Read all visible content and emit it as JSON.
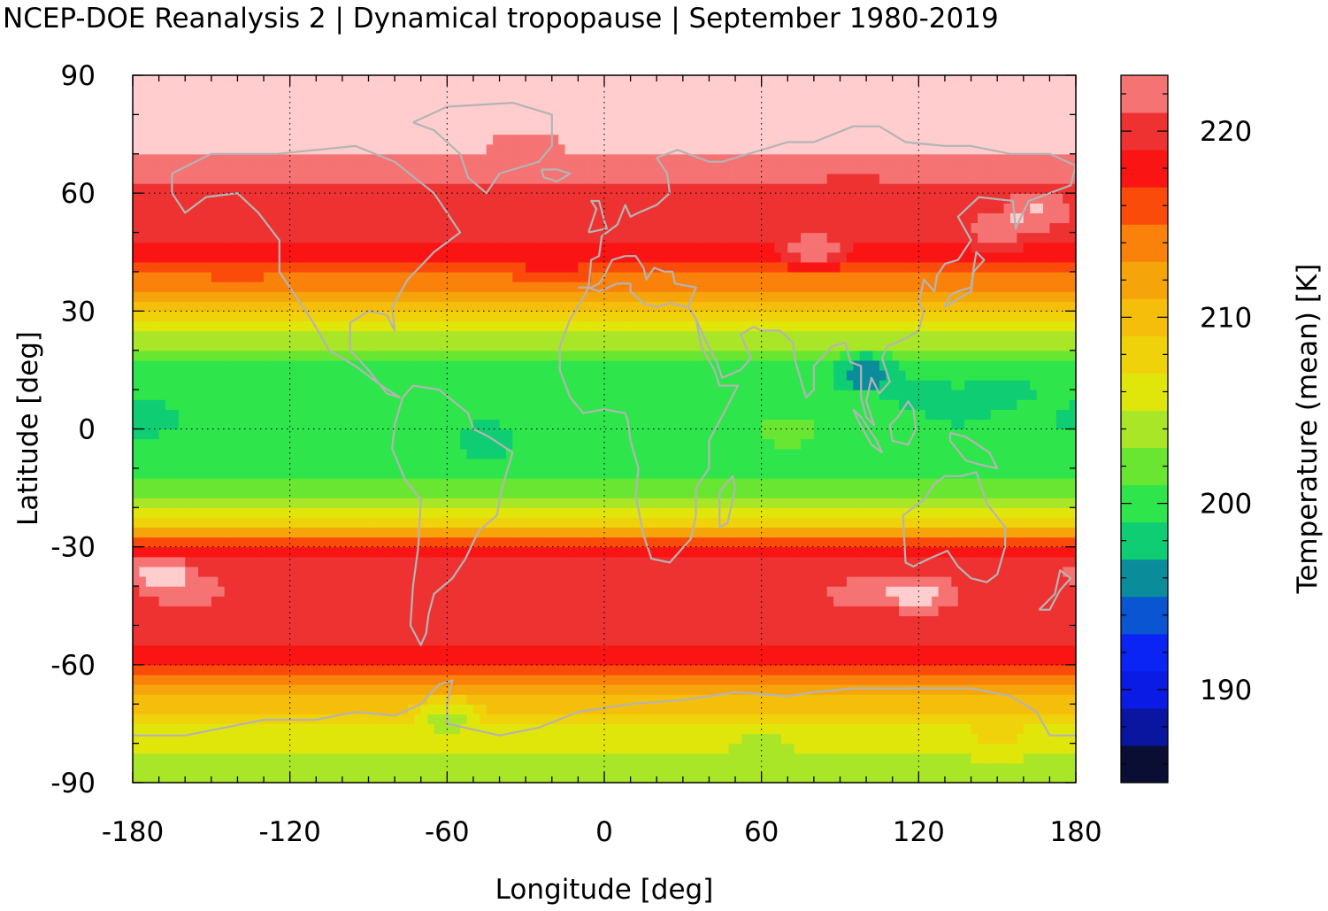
{
  "chart_data": {
    "type": "heatmap",
    "title": "NCEP-DOE Reanalysis 2 | Dynamical tropopause | September 1980-2019",
    "xlabel": "Longitude [deg]",
    "ylabel": "Latitude [deg]",
    "colorbar_label": "Temperature (mean) [K]",
    "xlim": [
      -180,
      180
    ],
    "ylim": [
      -90,
      90
    ],
    "x_ticks": [
      -180,
      -120,
      -60,
      0,
      60,
      120,
      180
    ],
    "y_ticks": [
      -90,
      -60,
      -30,
      0,
      30,
      60,
      90
    ],
    "colorbar_range": [
      185,
      223
    ],
    "colorbar_ticks": [
      190,
      200,
      210,
      220
    ],
    "grid": true,
    "overlay": "coastlines",
    "colorbar_levels": [
      {
        "from": 185,
        "to": 187,
        "color": "#0b0e33"
      },
      {
        "from": 187,
        "to": 189,
        "color": "#0a15a0"
      },
      {
        "from": 189,
        "to": 191,
        "color": "#0a1be6"
      },
      {
        "from": 191,
        "to": 193,
        "color": "#0a24f5"
      },
      {
        "from": 193,
        "to": 195,
        "color": "#0a55d2"
      },
      {
        "from": 195,
        "to": 197,
        "color": "#0a8c9b"
      },
      {
        "from": 197,
        "to": 199,
        "color": "#0fcd73"
      },
      {
        "from": 199,
        "to": 201,
        "color": "#2ee64b"
      },
      {
        "from": 201,
        "to": 203,
        "color": "#69e632"
      },
      {
        "from": 203,
        "to": 205,
        "color": "#aae628"
      },
      {
        "from": 205,
        "to": 207,
        "color": "#e1e60a"
      },
      {
        "from": 207,
        "to": 209,
        "color": "#f0d20a"
      },
      {
        "from": 209,
        "to": 211,
        "color": "#f5be0a"
      },
      {
        "from": 211,
        "to": 213,
        "color": "#f5a50a"
      },
      {
        "from": 213,
        "to": 215,
        "color": "#fa820a"
      },
      {
        "from": 215,
        "to": 217,
        "color": "#fa4b0a"
      },
      {
        "from": 217,
        "to": 219,
        "color": "#fa1414"
      },
      {
        "from": 219,
        "to": 221,
        "color": "#ee3232"
      },
      {
        "from": 221,
        "to": 223,
        "color": "#f57373"
      },
      {
        "from": 223,
        "to": 225,
        "color": "#ffcdcd"
      }
    ],
    "zonal_mean_temperature": [
      {
        "lat": -90,
        "value": 203
      },
      {
        "lat": -82,
        "value": 205
      },
      {
        "lat": -75,
        "value": 207
      },
      {
        "lat": -68,
        "value": 211
      },
      {
        "lat": -62,
        "value": 216
      },
      {
        "lat": -55,
        "value": 219
      },
      {
        "lat": -48,
        "value": 220
      },
      {
        "lat": -42,
        "value": 221
      },
      {
        "lat": -35,
        "value": 220
      },
      {
        "lat": -28,
        "value": 215
      },
      {
        "lat": -24,
        "value": 208
      },
      {
        "lat": -18,
        "value": 203
      },
      {
        "lat": -10,
        "value": 200
      },
      {
        "lat": 0,
        "value": 200
      },
      {
        "lat": 10,
        "value": 199
      },
      {
        "lat": 18,
        "value": 201
      },
      {
        "lat": 24,
        "value": 205
      },
      {
        "lat": 30,
        "value": 209
      },
      {
        "lat": 36,
        "value": 213
      },
      {
        "lat": 42,
        "value": 217
      },
      {
        "lat": 48,
        "value": 219
      },
      {
        "lat": 55,
        "value": 220
      },
      {
        "lat": 62,
        "value": 221
      },
      {
        "lat": 70,
        "value": 223
      },
      {
        "lat": 80,
        "value": 224
      },
      {
        "lat": 90,
        "value": 224
      }
    ],
    "anomalies": [
      {
        "lon": -45,
        "lat": -3,
        "value": 198
      },
      {
        "lon": 100,
        "lat": 15,
        "value": 196
      },
      {
        "lon": 120,
        "lat": 10,
        "value": 198
      },
      {
        "lon": 135,
        "lat": 5,
        "value": 198
      },
      {
        "lon": 150,
        "lat": 10,
        "value": 198
      },
      {
        "lon": -175,
        "lat": 2,
        "value": 198
      },
      {
        "lon": 70,
        "lat": 0,
        "value": 202
      },
      {
        "lon": -140,
        "lat": 40,
        "value": 216
      },
      {
        "lon": -20,
        "lat": 38,
        "value": 216
      },
      {
        "lon": -30,
        "lat": 72,
        "value": 222
      },
      {
        "lon": 120,
        "lat": -42,
        "value": 224
      },
      {
        "lon": 100,
        "lat": -42,
        "value": 222
      },
      {
        "lon": -160,
        "lat": -40,
        "value": 222
      },
      {
        "lon": -170,
        "lat": -36,
        "value": 224
      },
      {
        "lon": 95,
        "lat": 62,
        "value": 220
      },
      {
        "lon": 80,
        "lat": 45,
        "value": 222
      },
      {
        "lon": 150,
        "lat": 50,
        "value": 222
      },
      {
        "lon": 165,
        "lat": 55,
        "value": 223
      },
      {
        "lon": -165,
        "lat": 63,
        "value": 221
      },
      {
        "lon": -60,
        "lat": -72,
        "value": 205
      },
      {
        "lon": 60,
        "lat": -78,
        "value": 205
      },
      {
        "lon": 150,
        "lat": -80,
        "value": 207
      }
    ]
  }
}
